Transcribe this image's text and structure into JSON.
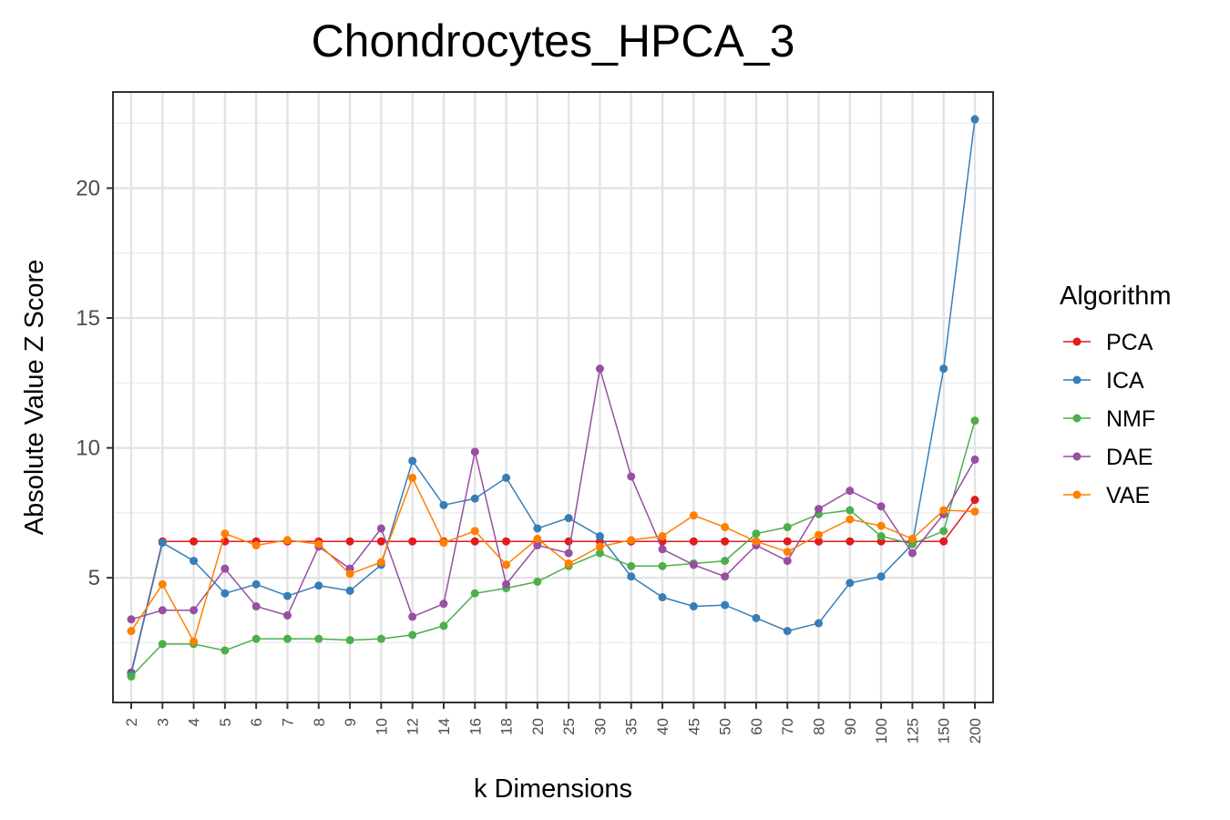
{
  "chart_data": {
    "type": "line",
    "title": "Chondrocytes_HPCA_3",
    "xlabel": "k Dimensions",
    "ylabel": "Absolute Value Z Score",
    "categories": [
      "2",
      "3",
      "4",
      "5",
      "6",
      "7",
      "8",
      "9",
      "10",
      "12",
      "14",
      "16",
      "18",
      "20",
      "25",
      "30",
      "35",
      "40",
      "45",
      "50",
      "60",
      "70",
      "80",
      "90",
      "100",
      "125",
      "150",
      "200"
    ],
    "y_ticks": [
      5,
      10,
      15,
      20
    ],
    "ylim": [
      0.2,
      23.7
    ],
    "grid": true,
    "legend": {
      "title": "Algorithm",
      "position": "right"
    },
    "series": [
      {
        "name": "PCA",
        "color": "#e41a1c",
        "values": [
          1.35,
          6.4,
          6.4,
          6.4,
          6.4,
          6.4,
          6.4,
          6.4,
          6.4,
          6.4,
          6.4,
          6.4,
          6.4,
          6.4,
          6.4,
          6.4,
          6.4,
          6.4,
          6.4,
          6.4,
          6.4,
          6.4,
          6.4,
          6.4,
          6.4,
          6.4,
          6.4,
          8.0
        ]
      },
      {
        "name": "ICA",
        "color": "#377eb8",
        "values": [
          1.3,
          6.35,
          5.65,
          4.4,
          4.75,
          4.3,
          4.7,
          4.5,
          5.5,
          9.5,
          7.8,
          8.05,
          8.85,
          6.9,
          7.3,
          6.6,
          5.05,
          4.25,
          3.9,
          3.95,
          3.45,
          2.95,
          3.25,
          4.8,
          5.05,
          6.3,
          13.05,
          22.65
        ]
      },
      {
        "name": "NMF",
        "color": "#4daf4a",
        "values": [
          1.2,
          2.45,
          2.45,
          2.2,
          2.65,
          2.65,
          2.65,
          2.6,
          2.65,
          2.8,
          3.15,
          4.4,
          4.6,
          4.85,
          5.45,
          5.95,
          5.45,
          5.45,
          5.55,
          5.65,
          6.7,
          6.95,
          7.45,
          7.6,
          6.6,
          6.3,
          6.8,
          11.05
        ]
      },
      {
        "name": "DAE",
        "color": "#984ea3",
        "values": [
          3.4,
          3.75,
          3.75,
          5.35,
          3.9,
          3.55,
          6.2,
          5.35,
          6.9,
          3.5,
          4.0,
          9.85,
          4.75,
          6.25,
          5.95,
          13.05,
          8.9,
          6.1,
          5.5,
          5.05,
          6.25,
          5.65,
          7.65,
          8.35,
          7.75,
          5.95,
          7.45,
          9.55
        ]
      },
      {
        "name": "VAE",
        "color": "#ff7f00",
        "values": [
          2.95,
          4.75,
          2.55,
          6.7,
          6.25,
          6.45,
          6.3,
          5.15,
          5.6,
          8.85,
          6.35,
          6.8,
          5.5,
          6.5,
          5.55,
          6.2,
          6.45,
          6.6,
          7.4,
          6.95,
          6.4,
          6.0,
          6.65,
          7.25,
          7.0,
          6.5,
          7.6,
          7.55
        ]
      }
    ]
  }
}
